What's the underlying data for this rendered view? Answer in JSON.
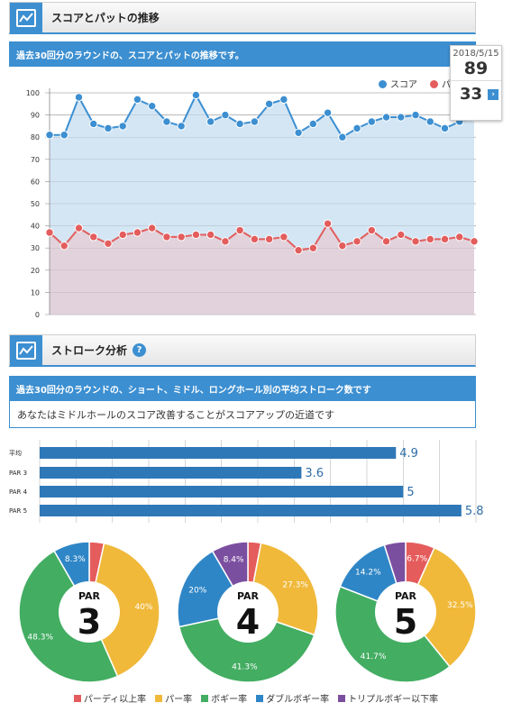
{
  "section1": {
    "title": "スコアとパットの推移",
    "subtitle": "過去30回分のラウンドの、スコアとパットの推移です。"
  },
  "section2": {
    "title": "ストローク分析",
    "help": "?",
    "subtitle": "過去30回分のラウンドの、ショート、ミドル、ロングホール別の平均ストローク数です",
    "advice": "あなたはミドルホールのスコア改善することがスコアアップの近道です"
  },
  "tooltip": {
    "date": "2018/5/15",
    "score": "89",
    "putt": "33",
    "arrow": "›"
  },
  "colors": {
    "score": "#3c8fd1",
    "putt": "#e35d5d",
    "bar": "#2e78b8",
    "birdie": "#e55c5c",
    "par": "#f0b93a",
    "bogey": "#43ad62",
    "double": "#2f86c6",
    "triple": "#7b4fa0"
  },
  "chart_data": [
    {
      "type": "line",
      "ylim": [
        0,
        100
      ],
      "yticks": [
        0,
        10,
        20,
        30,
        40,
        50,
        60,
        70,
        80,
        90,
        100
      ],
      "grid": true,
      "legend": "top-right",
      "series": [
        {
          "name": "スコア",
          "values": [
            81,
            81,
            98,
            86,
            84,
            85,
            97,
            94,
            87,
            85,
            99,
            87,
            90,
            86,
            87,
            95,
            97,
            82,
            86,
            91,
            80,
            84,
            87,
            89,
            89,
            90,
            87,
            84,
            87,
            89
          ]
        },
        {
          "name": "パット",
          "values": [
            37,
            31,
            39,
            35,
            32,
            36,
            37,
            39,
            35,
            35,
            36,
            36,
            33,
            38,
            34,
            34,
            35,
            29,
            30,
            41,
            31,
            33,
            38,
            33,
            36,
            33,
            34,
            34,
            35,
            33
          ]
        }
      ],
      "legend_visible": [
        "スコア",
        "パ"
      ]
    },
    {
      "type": "bar",
      "orientation": "horizontal",
      "categories": [
        "平均",
        "PAR 3",
        "PAR 4",
        "PAR 5"
      ],
      "values": [
        4.9,
        3.6,
        5,
        5.8
      ],
      "value_labels": [
        "4.9",
        "3.6",
        "5",
        "5.8"
      ],
      "xlim": [
        0,
        6
      ]
    },
    {
      "type": "pie",
      "title": "PAR",
      "number": "3",
      "slices": [
        {
          "label": "パーディ以上率",
          "value": 3.4,
          "text": ""
        },
        {
          "label": "パー率",
          "value": 40,
          "text": "40%"
        },
        {
          "label": "ボギー率",
          "value": 48.3,
          "text": "48.3%"
        },
        {
          "label": "ダブルボギー率",
          "value": 8.3,
          "text": "8.3%"
        },
        {
          "label": "トリプルボギー以下率",
          "value": 0,
          "text": ""
        }
      ]
    },
    {
      "type": "pie",
      "title": "PAR",
      "number": "4",
      "slices": [
        {
          "label": "パーディ以上率",
          "value": 3,
          "text": ""
        },
        {
          "label": "パー率",
          "value": 27.3,
          "text": "27.3%"
        },
        {
          "label": "ボギー率",
          "value": 41.3,
          "text": "41.3%"
        },
        {
          "label": "ダブルボギー率",
          "value": 20,
          "text": "20%"
        },
        {
          "label": "トリプルボギー以下率",
          "value": 8.4,
          "text": "8.4%"
        }
      ]
    },
    {
      "type": "pie",
      "title": "PAR",
      "number": "5",
      "slices": [
        {
          "label": "パーディ以上率",
          "value": 6.7,
          "text": "6.7%"
        },
        {
          "label": "パー率",
          "value": 32.5,
          "text": "32.5%"
        },
        {
          "label": "ボギー率",
          "value": 41.7,
          "text": "41.7%"
        },
        {
          "label": "ダブルボギー率",
          "value": 14.2,
          "text": "14.2%"
        },
        {
          "label": "トリプルボギー以下率",
          "value": 4.9,
          "text": ""
        }
      ]
    }
  ],
  "pie_legend": [
    "パーディ以上率",
    "パー率",
    "ボギー率",
    "ダブルボギー率",
    "トリプルボギー以下率"
  ]
}
